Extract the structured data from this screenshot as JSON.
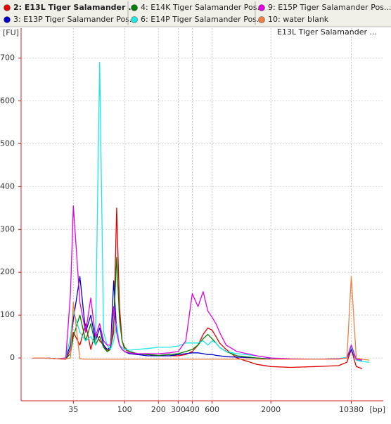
{
  "chart_data": {
    "type": "line",
    "title": "E13L Tiger Salamander ...",
    "x_label": "[bp]",
    "y_label": "[FU]",
    "xscale": "log",
    "xlim": [
      12,
      20000
    ],
    "xticks": [
      35,
      100,
      200,
      300,
      400,
      600,
      2000,
      10380
    ],
    "ylim": [
      -100,
      770
    ],
    "yticks": [
      0,
      100,
      200,
      300,
      400,
      500,
      600,
      700
    ],
    "grid": true,
    "legend": "top",
    "x": [
      15,
      20,
      25,
      30,
      33,
      35,
      40,
      45,
      50,
      55,
      60,
      65,
      70,
      75,
      80,
      85,
      90,
      95,
      100,
      110,
      130,
      160,
      200,
      250,
      300,
      350,
      400,
      450,
      500,
      550,
      600,
      650,
      700,
      800,
      1000,
      1500,
      2000,
      3000,
      5000,
      8000,
      9500,
      10380,
      11500,
      13000,
      15000
    ],
    "series": [
      {
        "name": "2: E13L Tiger Salamander ...",
        "color": "#e00000",
        "values": [
          0,
          0,
          -2,
          -3,
          20,
          60,
          30,
          80,
          20,
          60,
          40,
          30,
          15,
          25,
          60,
          350,
          120,
          40,
          20,
          15,
          10,
          8,
          5,
          5,
          5,
          8,
          15,
          30,
          55,
          70,
          65,
          50,
          35,
          20,
          0,
          -15,
          -20,
          -22,
          -20,
          -18,
          -10,
          20,
          -20,
          -25,
          null
        ]
      },
      {
        "name": "3: E13P Tiger Salamander Pos...",
        "color": "#0000c8",
        "values": [
          0,
          0,
          -2,
          0,
          30,
          90,
          190,
          60,
          100,
          40,
          70,
          30,
          20,
          25,
          180,
          60,
          30,
          20,
          15,
          10,
          8,
          5,
          5,
          5,
          8,
          10,
          12,
          12,
          10,
          8,
          8,
          6,
          5,
          3,
          2,
          0,
          -2,
          -3,
          -3,
          -2,
          0,
          20,
          -5,
          -8,
          null
        ]
      },
      {
        "name": "4: E14K Tiger Salamander Pos...",
        "color": "#008000",
        "values": [
          0,
          0,
          -2,
          -2,
          10,
          50,
          100,
          40,
          80,
          30,
          50,
          25,
          15,
          20,
          80,
          235,
          90,
          40,
          25,
          15,
          10,
          8,
          6,
          8,
          10,
          15,
          20,
          30,
          45,
          55,
          45,
          35,
          25,
          15,
          5,
          0,
          -3,
          -3,
          -3,
          -2,
          0,
          25,
          -3,
          -5,
          null
        ]
      },
      {
        "name": "6: E14P Tiger Salamander Pos...",
        "color": "#19e8e8",
        "values": [
          0,
          0,
          -2,
          0,
          50,
          110,
          60,
          40,
          50,
          30,
          690,
          60,
          30,
          20,
          40,
          80,
          30,
          25,
          20,
          18,
          20,
          22,
          25,
          25,
          28,
          35,
          35,
          35,
          40,
          30,
          40,
          35,
          25,
          15,
          10,
          5,
          0,
          -3,
          -3,
          -2,
          2,
          25,
          -5,
          -8,
          -10
        ]
      },
      {
        "name": "9: E15P Tiger Salamander Pos...",
        "color": "#e000e0",
        "values": [
          0,
          0,
          -2,
          0,
          150,
          355,
          130,
          60,
          140,
          50,
          80,
          40,
          30,
          30,
          120,
          60,
          30,
          20,
          15,
          12,
          10,
          10,
          10,
          12,
          15,
          40,
          150,
          120,
          155,
          110,
          95,
          80,
          60,
          30,
          15,
          5,
          0,
          -2,
          -3,
          -2,
          0,
          30,
          -3,
          -5,
          null
        ]
      },
      {
        "name": "10: water blank",
        "color": "#f08040",
        "values": [
          0,
          0,
          -2,
          -2,
          0,
          130,
          -2,
          -3,
          -3,
          -3,
          -3,
          -3,
          -3,
          -3,
          -3,
          -3,
          -3,
          -3,
          -3,
          -3,
          -3,
          -3,
          -3,
          -3,
          -3,
          -3,
          -3,
          -3,
          -3,
          -3,
          -3,
          -3,
          -3,
          -3,
          -3,
          -3,
          -3,
          -3,
          -3,
          -3,
          0,
          190,
          0,
          -3,
          -5
        ]
      }
    ]
  }
}
